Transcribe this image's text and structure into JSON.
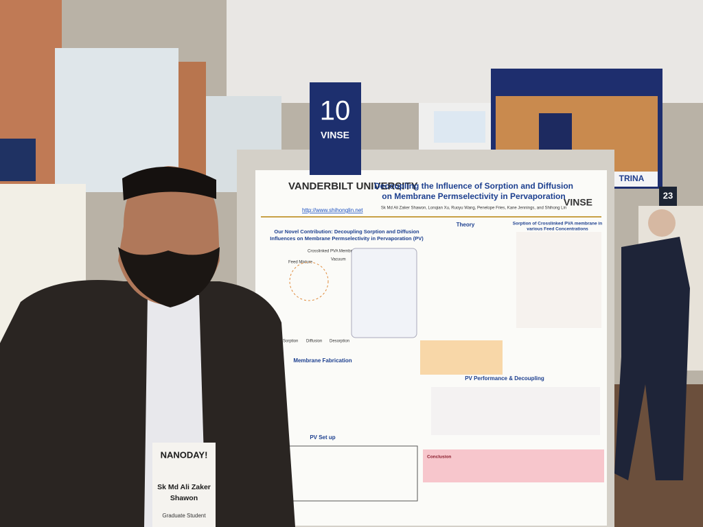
{
  "sign": {
    "number": "10",
    "label": "VINSE"
  },
  "poster": {
    "institution": "VANDERBILT UNIVERSITY",
    "title_line1": "Decoupling the Influence of Sorption and Diffusion",
    "title_line2": "on Membrane Permselectivity in Pervaporation",
    "url": "http://www.shihonglin.net",
    "authors": "Sk Md Ali Zaker Shawon, Lonqian Xu, Ruoyu Wang, Penelope Fries, Kane Jennings, and Shihong Lin",
    "logo": "VINSE",
    "sections": [
      "Our Novel Contribution: Decoupling Sorption and Diffusion",
      "Influences on Membrane Permselectivity in Pervaporation (PV)",
      "Theory",
      "Sorption of Crosslinked PVA membrane in",
      "various Feed Concentrations",
      "Membrane Fabrication",
      "PV Performance & Decoupling",
      "PV Set up",
      "Conclusion"
    ],
    "diagram_labels": [
      "Feed Mixture",
      "Crosslinked PVA Membrane",
      "Vacuum",
      "Sorption",
      "Diffusion",
      "Desorption"
    ]
  },
  "badge": {
    "event": "NANODAY!",
    "name_line1": "Sk Md Ali Zaker",
    "name_line2": "Shawon",
    "role": "Graduate Student"
  },
  "booth": {
    "number": "23"
  },
  "screen": {
    "brand": "TRINA"
  }
}
